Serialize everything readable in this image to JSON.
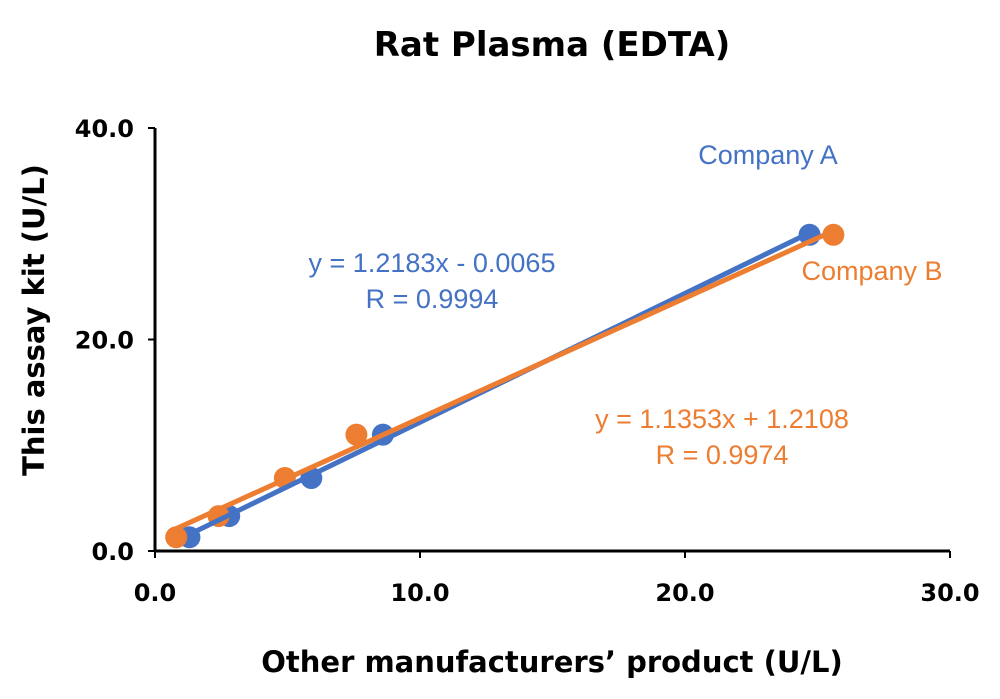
{
  "chart_data": {
    "type": "scatter",
    "title": "Rat Plasma (EDTA)",
    "xlabel": "Other manufacturers’ product (U/L)",
    "ylabel": "This assay kit (U/L)",
    "xlim": [
      0,
      30
    ],
    "ylim": [
      0,
      40
    ],
    "xticks": [
      "0.0",
      "10.0",
      "20.0",
      "30.0"
    ],
    "yticks": [
      "0.0",
      "20.0",
      "40.0"
    ],
    "grid": false,
    "series": [
      {
        "name": "Company A",
        "color": "#4472C4",
        "x": [
          1.3,
          2.8,
          5.9,
          8.6,
          24.7
        ],
        "y": [
          1.3,
          3.3,
          6.9,
          11.0,
          29.9
        ],
        "trendline": {
          "slope": 1.2183,
          "intercept": -0.0065,
          "x_range": [
            1.3,
            24.7
          ]
        },
        "equation": "y = 1.2183x - 0.0065",
        "r_label": "R = 0.9994"
      },
      {
        "name": "Company B",
        "color": "#ED7D31",
        "x": [
          0.8,
          2.4,
          4.9,
          7.6,
          25.6
        ],
        "y": [
          1.3,
          3.3,
          6.9,
          11.0,
          29.9
        ],
        "trendline": {
          "slope": 1.1353,
          "intercept": 1.2108,
          "x_range": [
            0.8,
            25.6
          ]
        },
        "equation": "y = 1.1353x + 1.2108",
        "r_label": "R = 0.9974"
      }
    ]
  }
}
